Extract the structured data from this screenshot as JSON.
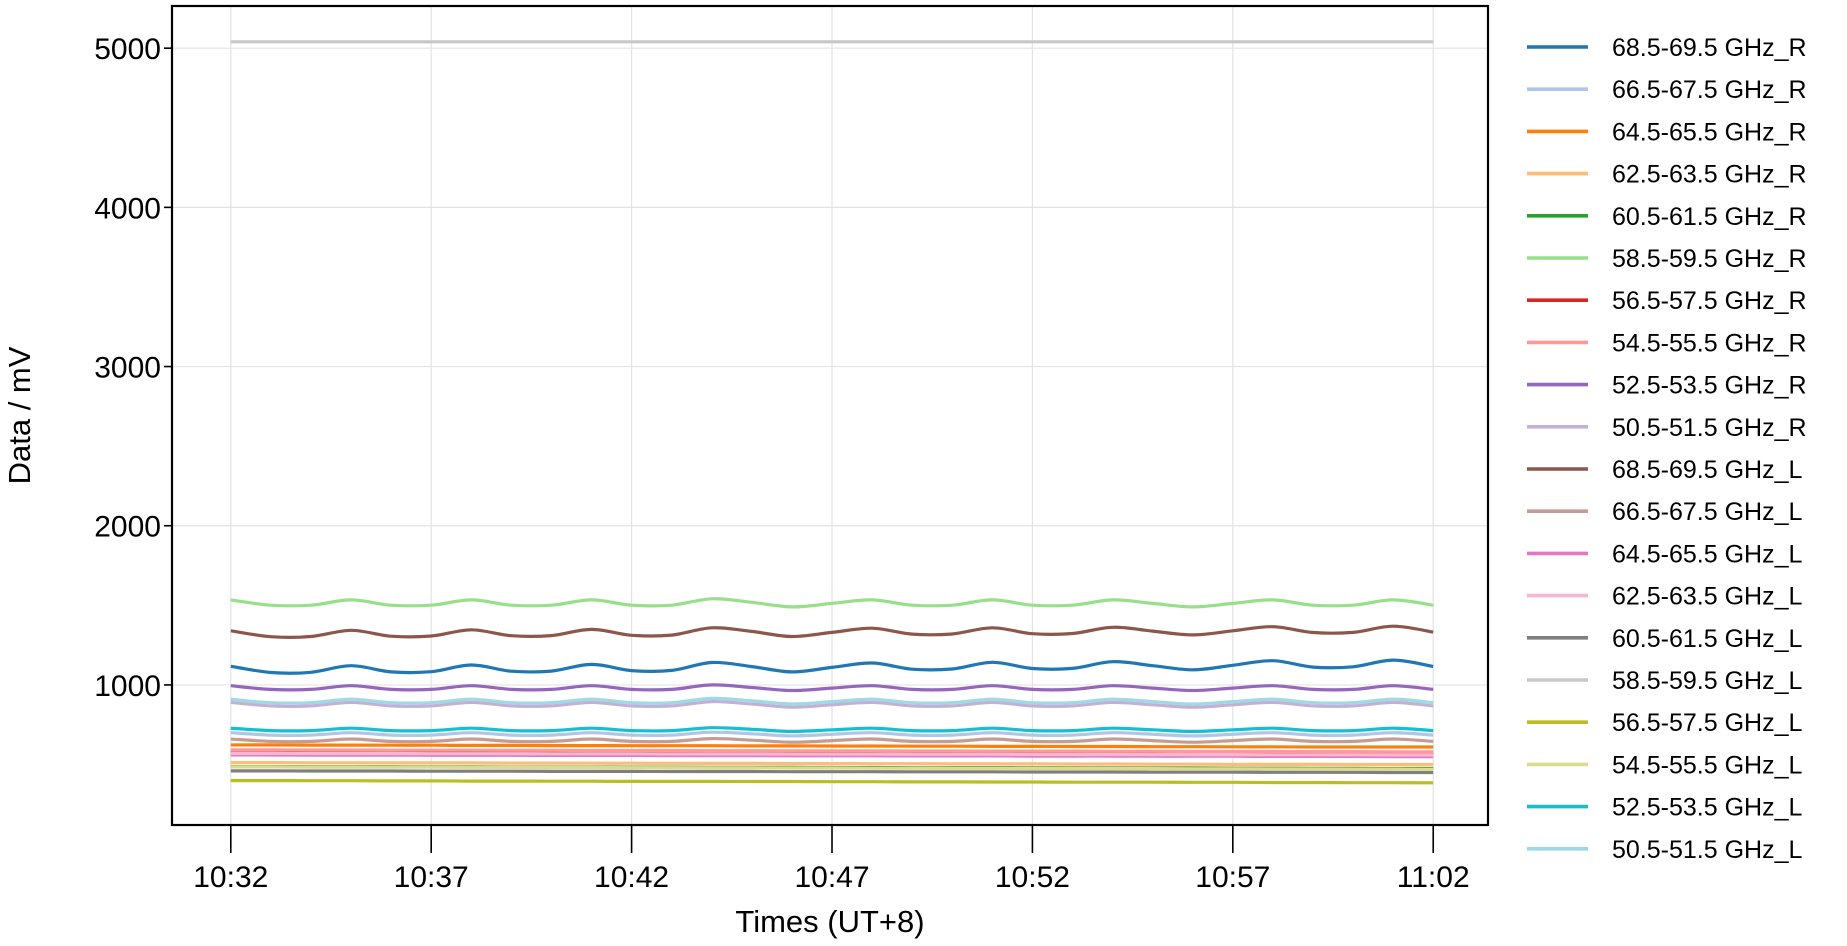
{
  "chart_data": {
    "type": "line",
    "title": "",
    "xlabel": "Times (UT+8)",
    "ylabel": "Data / mV",
    "xlim": [
      "10:30:32",
      "11:03:22"
    ],
    "ylim": [
      120,
      5265
    ],
    "grid": true,
    "legend_placement": "outside-right",
    "x_ticks": [
      "10:32",
      "10:37",
      "10:42",
      "10:47",
      "10:52",
      "10:57",
      "11:02"
    ],
    "y_ticks": [
      1000,
      2000,
      3000,
      4000,
      5000
    ],
    "x": [
      "10:32",
      "10:33",
      "10:34",
      "10:35",
      "10:36",
      "10:37",
      "10:38",
      "10:39",
      "10:40",
      "10:41",
      "10:42",
      "10:43",
      "10:44",
      "10:45",
      "10:46",
      "10:47",
      "10:48",
      "10:49",
      "10:50",
      "10:51",
      "10:52",
      "10:53",
      "10:54",
      "10:55",
      "10:56",
      "10:57",
      "10:58",
      "10:59",
      "11:00",
      "11:01",
      "11:02"
    ],
    "series": [
      {
        "name": "68.5-69.5 GHz_R",
        "color": "#1f77b4",
        "values": [
          1117,
          1078,
          1079,
          1121,
          1082,
          1083,
          1125,
          1086,
          1087,
          1129,
          1090,
          1091,
          1141,
          1115,
          1082,
          1110,
          1138,
          1099,
          1100,
          1142,
          1103,
          1104,
          1146,
          1121,
          1095,
          1123,
          1152,
          1112,
          1114,
          1156,
          1116
        ]
      },
      {
        "name": "66.5-67.5 GHz_R",
        "color": "#aec7e8",
        "values": [
          700,
          685,
          685,
          700,
          685,
          685,
          700,
          685,
          685,
          700,
          685,
          685,
          703,
          693,
          680,
          690,
          700,
          685,
          685,
          700,
          685,
          685,
          700,
          690,
          680,
          690,
          700,
          685,
          685,
          700,
          685
        ]
      },
      {
        "name": "64.5-65.5 GHz_R",
        "color": "#ff7f0e",
        "values": [
          623,
          623,
          622,
          622,
          621,
          621,
          620,
          620,
          619,
          619,
          618,
          618,
          618,
          617,
          617,
          616,
          616,
          615,
          615,
          614,
          614,
          613,
          613,
          612,
          612,
          611,
          611,
          610,
          610,
          610,
          610
        ]
      },
      {
        "name": "62.5-63.5 GHz_R",
        "color": "#ffbb78",
        "values": [
          512,
          512,
          511,
          511,
          510,
          510,
          510,
          509,
          509,
          508,
          508,
          507,
          507,
          507,
          506,
          506,
          505,
          505,
          504,
          504,
          504,
          503,
          503,
          502,
          502,
          501,
          501,
          501,
          500,
          500,
          500
        ]
      },
      {
        "name": "60.5-61.5 GHz_R",
        "color": "#2ca02c",
        "values": [
          487,
          487,
          486,
          486,
          486,
          485,
          485,
          484,
          484,
          484,
          483,
          483,
          482,
          482,
          482,
          481,
          481,
          480,
          480,
          480,
          479,
          479,
          478,
          478,
          478,
          477,
          477,
          476,
          476,
          475,
          475
        ]
      },
      {
        "name": "58.5-59.5 GHz_R",
        "color": "#98df8a",
        "values": [
          1534,
          1501,
          1501,
          1534,
          1501,
          1501,
          1534,
          1501,
          1501,
          1534,
          1501,
          1501,
          1541,
          1519,
          1490,
          1512,
          1534,
          1501,
          1501,
          1534,
          1501,
          1501,
          1534,
          1512,
          1490,
          1512,
          1534,
          1501,
          1501,
          1534,
          1501
        ]
      },
      {
        "name": "56.5-57.5 GHz_R",
        "color": "#d62728",
        "values": [
          580,
          580,
          579,
          579,
          579,
          578,
          578,
          578,
          577,
          577,
          577,
          576,
          576,
          576,
          575,
          575,
          575,
          574,
          574,
          574,
          573,
          573,
          573,
          572,
          572,
          572,
          571,
          571,
          571,
          570,
          570
        ]
      },
      {
        "name": "54.5-55.5 GHz_R",
        "color": "#ff9896",
        "values": [
          592,
          592,
          591,
          591,
          590,
          590,
          590,
          589,
          589,
          588,
          588,
          588,
          587,
          587,
          586,
          586,
          586,
          585,
          585,
          584,
          584,
          584,
          583,
          583,
          582,
          582,
          582,
          581,
          581,
          580,
          580
        ]
      },
      {
        "name": "52.5-53.5 GHz_R",
        "color": "#9467bd",
        "values": [
          995,
          972,
          972,
          995,
          972,
          972,
          995,
          972,
          972,
          995,
          972,
          972,
          1000,
          984,
          965,
          980,
          995,
          972,
          972,
          995,
          972,
          972,
          995,
          980,
          965,
          980,
          995,
          972,
          972,
          995,
          972
        ]
      },
      {
        "name": "50.5-51.5 GHz_R",
        "color": "#c5b0d5",
        "values": [
          890,
          868,
          868,
          890,
          868,
          868,
          890,
          868,
          868,
          890,
          868,
          868,
          895,
          880,
          860,
          875,
          890,
          868,
          868,
          890,
          868,
          868,
          890,
          875,
          860,
          875,
          890,
          868,
          868,
          890,
          868
        ]
      },
      {
        "name": "68.5-69.5 GHz_L",
        "color": "#8c564b",
        "values": [
          1340,
          1303,
          1304,
          1343,
          1306,
          1307,
          1346,
          1309,
          1310,
          1349,
          1312,
          1313,
          1359,
          1336,
          1304,
          1330,
          1356,
          1319,
          1320,
          1359,
          1322,
          1323,
          1362,
          1338,
          1314,
          1340,
          1366,
          1329,
          1330,
          1369,
          1332
        ]
      },
      {
        "name": "66.5-67.5 GHz_L",
        "color": "#c49c94",
        "values": [
          660,
          645,
          645,
          660,
          645,
          645,
          660,
          645,
          645,
          660,
          645,
          645,
          663,
          653,
          640,
          650,
          660,
          645,
          645,
          660,
          645,
          645,
          660,
          650,
          640,
          650,
          660,
          645,
          645,
          660,
          645
        ]
      },
      {
        "name": "64.5-65.5 GHz_L",
        "color": "#e377c2",
        "values": [
          560,
          560,
          559,
          559,
          559,
          558,
          558,
          558,
          557,
          557,
          557,
          556,
          556,
          556,
          555,
          555,
          555,
          554,
          554,
          554,
          553,
          553,
          553,
          552,
          552,
          552,
          551,
          551,
          551,
          550,
          550
        ]
      },
      {
        "name": "62.5-63.5 GHz_L",
        "color": "#f7b6d2",
        "values": [
          570,
          570,
          569,
          569,
          569,
          568,
          568,
          568,
          567,
          567,
          567,
          566,
          566,
          566,
          565,
          565,
          565,
          564,
          564,
          564,
          563,
          563,
          563,
          562,
          562,
          562,
          561,
          561,
          561,
          560,
          560
        ]
      },
      {
        "name": "60.5-61.5 GHz_L",
        "color": "#7f7f7f",
        "values": [
          460,
          460,
          459,
          459,
          459,
          458,
          458,
          458,
          457,
          457,
          457,
          456,
          456,
          456,
          455,
          455,
          455,
          454,
          454,
          454,
          453,
          453,
          453,
          452,
          452,
          452,
          451,
          451,
          451,
          450,
          450
        ]
      },
      {
        "name": "58.5-59.5 GHz_L",
        "color": "#c7c7c7",
        "values": [
          5040,
          5040,
          5040,
          5040,
          5040,
          5040,
          5040,
          5040,
          5040,
          5040,
          5040,
          5040,
          5040,
          5040,
          5040,
          5040,
          5040,
          5040,
          5040,
          5040,
          5040,
          5040,
          5040,
          5040,
          5040,
          5040,
          5040,
          5040,
          5040,
          5040,
          5040
        ]
      },
      {
        "name": "56.5-57.5 GHz_L",
        "color": "#bcbd22",
        "values": [
          399,
          399,
          398,
          398,
          397,
          397,
          396,
          396,
          395,
          395,
          394,
          394,
          394,
          393,
          393,
          392,
          392,
          391,
          391,
          390,
          390,
          389,
          389,
          389,
          388,
          388,
          387,
          387,
          386,
          386,
          385
        ]
      },
      {
        "name": "54.5-55.5 GHz_L",
        "color": "#dbdb8d",
        "values": [
          485,
          485,
          484,
          484,
          483,
          483,
          482,
          482,
          481,
          481,
          480,
          480,
          479,
          479,
          478,
          478,
          477,
          477,
          476,
          476,
          475,
          475,
          474,
          474,
          473,
          473,
          472,
          472,
          471,
          471,
          470
        ]
      },
      {
        "name": "52.5-53.5 GHz_L",
        "color": "#17becf",
        "values": [
          728,
          713,
          713,
          728,
          713,
          713,
          728,
          713,
          713,
          728,
          713,
          713,
          731,
          721,
          708,
          718,
          728,
          713,
          713,
          728,
          713,
          713,
          728,
          718,
          708,
          718,
          728,
          713,
          713,
          728,
          713
        ]
      },
      {
        "name": "50.5-51.5 GHz_L",
        "color": "#9edae5",
        "values": [
          910,
          888,
          888,
          910,
          888,
          888,
          910,
          888,
          888,
          910,
          888,
          888,
          915,
          900,
          880,
          895,
          910,
          888,
          888,
          910,
          888,
          888,
          910,
          895,
          880,
          895,
          910,
          888,
          888,
          910,
          888
        ]
      }
    ]
  }
}
